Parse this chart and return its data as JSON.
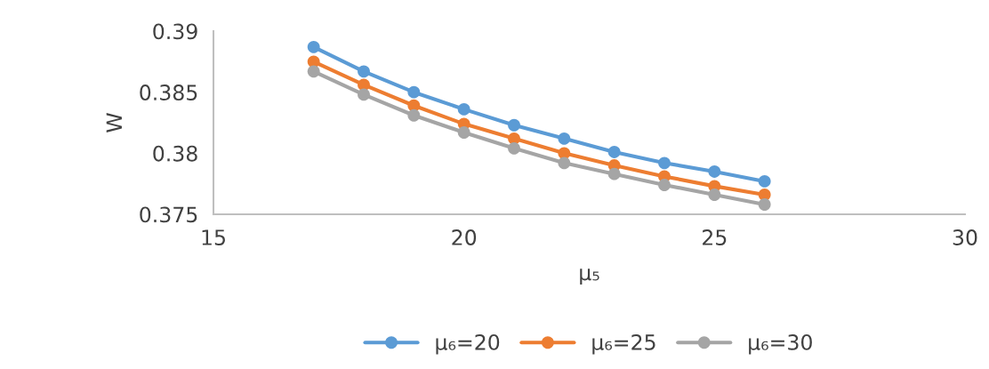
{
  "chart_data": {
    "type": "line",
    "xlabel": "μ₅",
    "ylabel": "W",
    "xlim": [
      15,
      30
    ],
    "xticks": [
      15,
      20,
      25,
      30
    ],
    "ylim": [
      0.375,
      0.39
    ],
    "yticks": [
      0.375,
      0.38,
      0.385,
      0.39
    ],
    "x": [
      17,
      18,
      19,
      20,
      21,
      22,
      23,
      24,
      25,
      26
    ],
    "series": [
      {
        "name": "μ₆=20",
        "color": "#5b9bd5",
        "values": [
          0.3887,
          0.3867,
          0.385,
          0.3836,
          0.3823,
          0.3812,
          0.3801,
          0.3792,
          0.3785,
          0.3777
        ]
      },
      {
        "name": "μ₆=25",
        "color": "#ed7d31",
        "values": [
          0.3875,
          0.3856,
          0.3839,
          0.3824,
          0.3812,
          0.38,
          0.379,
          0.3781,
          0.3773,
          0.3766
        ]
      },
      {
        "name": "μ₆=30",
        "color": "#a5a5a5",
        "values": [
          0.3867,
          0.3848,
          0.3831,
          0.3817,
          0.3804,
          0.3792,
          0.3783,
          0.3774,
          0.3766,
          0.3758
        ]
      }
    ],
    "marker": "circle",
    "line_style": "solid",
    "grid": false,
    "legend": "bottom"
  }
}
